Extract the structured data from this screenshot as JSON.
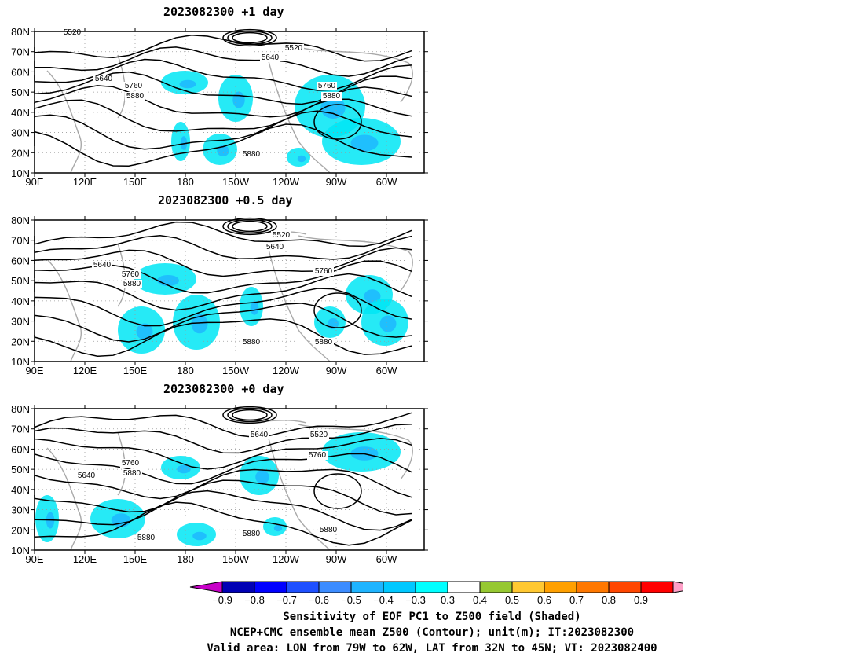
{
  "panels": [
    {
      "title": "2023082300  +1 day",
      "contour_labels": [
        "5520",
        "5520",
        "5640",
        "5640",
        "5760",
        "5760",
        "5880",
        "5880",
        "5880"
      ]
    },
    {
      "title": "2023082300  +0.5 day",
      "contour_labels": [
        "5520",
        "5640",
        "5640",
        "5760",
        "5760",
        "5880",
        "5880",
        "5880"
      ]
    },
    {
      "title": "2023082300  +0 day",
      "contour_labels": [
        "5640",
        "5520",
        "5640",
        "5760",
        "5760",
        "5880",
        "5880",
        "5880",
        "5880"
      ]
    }
  ],
  "axes": {
    "lat_ticks": [
      "80N",
      "70N",
      "60N",
      "50N",
      "40N",
      "30N",
      "20N",
      "10N"
    ],
    "lon_ticks": [
      "90E",
      "120E",
      "150E",
      "180",
      "150W",
      "120W",
      "90W",
      "60W"
    ]
  },
  "colorbar": {
    "tick_labels": [
      "-0.9",
      "-0.8",
      "-0.7",
      "-0.6",
      "-0.5",
      "-0.4",
      "-0.3",
      "0.3",
      "0.4",
      "0.5",
      "0.6",
      "0.7",
      "0.8",
      "0.9"
    ],
    "colors": [
      "#c800c8",
      "#0000b4",
      "#0000ff",
      "#1e50ff",
      "#3c8cff",
      "#1eb4ff",
      "#00c8ff",
      "#00ffff",
      "#ffffff",
      "#96c832",
      "#ffc832",
      "#ffa000",
      "#ff7800",
      "#ff4600",
      "#ff0000",
      "#ffa0c8"
    ]
  },
  "caption": {
    "line1": "Sensitivity of EOF PC1 to Z500 field (Shaded)",
    "line2": "NCEP+CMC ensemble mean Z500 (Contour); unit(m); IT:2023082300",
    "line3": "Valid area: LON from 79W to 62W, LAT from 32N to 45N; VT: 2023082400"
  }
}
